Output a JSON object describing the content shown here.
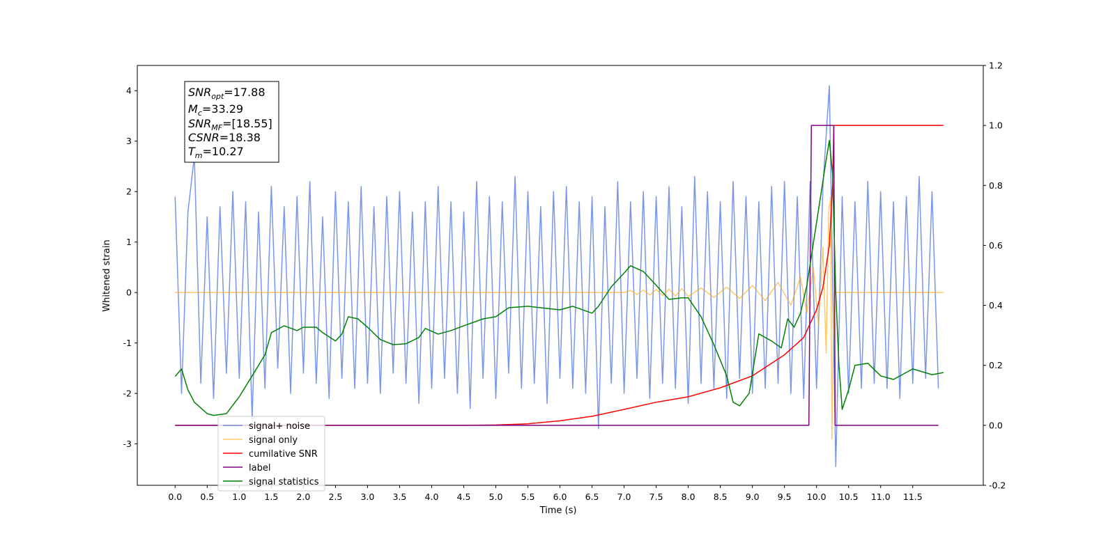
{
  "chart_data": {
    "type": "line",
    "xlabel": "Time (s)",
    "ylabel": "Whitened strain",
    "xlim": [
      -0.59,
      12.6
    ],
    "ylim": [
      -3.82,
      4.5
    ],
    "y2lim": [
      -0.2,
      1.2
    ],
    "xticks": [
      {
        "value": 0,
        "label": "0.0"
      },
      0.5,
      {
        "value": 1,
        "label": "1.0"
      },
      1.5,
      {
        "value": 2,
        "label": "2.0"
      },
      2.5,
      {
        "value": 3,
        "label": "3.0"
      },
      3.5,
      {
        "value": 4,
        "label": "4.0"
      },
      4.5,
      {
        "value": 5,
        "label": "5.0"
      },
      5.5,
      {
        "value": 6,
        "label": "6.0"
      },
      6.5,
      {
        "value": 7,
        "label": "7.0"
      },
      7.5,
      {
        "value": 8,
        "label": "8.0"
      },
      8.5,
      {
        "value": 9,
        "label": "9.0"
      },
      9.5,
      {
        "value": 10,
        "label": "10.0"
      },
      10.5,
      {
        "value": 11,
        "label": "11.0"
      },
      11.5
    ],
    "yticks": [
      -3,
      -2,
      -1,
      0,
      1,
      2,
      3,
      4
    ],
    "y2ticks": [
      -0.2,
      {
        "value": 0,
        "label": "0.0"
      },
      0.2,
      0.4,
      0.6,
      0.8,
      {
        "value": 1,
        "label": "1.0"
      },
      1.2
    ],
    "annotations": [
      {
        "base": "SNR",
        "sub": "opt",
        "text": "=17.88"
      },
      {
        "base": "M",
        "sub": "c",
        "text": "=33.29"
      },
      {
        "base": "SNR",
        "sub": "MF",
        "text": "=[18.55]"
      },
      {
        "base": "CSNR",
        "text": "=18.38"
      },
      {
        "base": "T",
        "sub": "m",
        "text": "=10.27"
      }
    ],
    "series": [
      {
        "name": "signal+ noise",
        "color": "#4169e1",
        "alpha": 0.7,
        "axis": "y",
        "x": [
          0,
          0.1,
          0.2,
          0.3,
          0.4,
          0.5,
          0.6,
          0.7,
          0.8,
          0.9,
          1,
          1.1,
          1.2,
          1.3,
          1.4,
          1.5,
          1.6,
          1.7,
          1.8,
          1.9,
          2,
          2.1,
          2.2,
          2.3,
          2.4,
          2.5,
          2.6,
          2.7,
          2.8,
          2.9,
          3,
          3.1,
          3.2,
          3.3,
          3.4,
          3.5,
          3.6,
          3.7,
          3.8,
          3.9,
          4,
          4.1,
          4.2,
          4.3,
          4.4,
          4.5,
          4.6,
          4.7,
          4.8,
          4.9,
          5,
          5.1,
          5.2,
          5.3,
          5.4,
          5.5,
          5.6,
          5.7,
          5.8,
          5.9,
          6,
          6.1,
          6.2,
          6.3,
          6.4,
          6.5,
          6.6,
          6.7,
          6.8,
          6.9,
          7,
          7.1,
          7.2,
          7.3,
          7.4,
          7.5,
          7.6,
          7.7,
          7.8,
          7.9,
          8,
          8.1,
          8.2,
          8.3,
          8.4,
          8.5,
          8.6,
          8.7,
          8.8,
          8.9,
          9,
          9.1,
          9.2,
          9.3,
          9.4,
          9.5,
          9.6,
          9.7,
          9.8,
          9.9,
          10,
          10.1,
          10.2,
          10.3,
          10.4,
          10.5,
          10.6,
          10.7,
          10.8,
          10.9,
          11,
          11.1,
          11.2,
          11.3,
          11.4,
          11.5,
          11.6,
          11.7,
          11.8,
          11.9
        ],
        "values": [
          1.9,
          -2.0,
          1.6,
          2.7,
          -1.8,
          1.5,
          -2.1,
          1.7,
          -1.6,
          2.0,
          -1.7,
          1.8,
          -2.5,
          1.6,
          -1.9,
          2.1,
          -1.5,
          1.7,
          -2.0,
          1.9,
          -1.6,
          2.2,
          -1.8,
          1.5,
          -2.1,
          2.0,
          -1.7,
          1.8,
          -1.9,
          2.1,
          -1.8,
          1.7,
          -2.0,
          1.9,
          -1.6,
          2.0,
          -1.8,
          1.6,
          -2.2,
          1.8,
          -1.9,
          2.1,
          -1.7,
          1.8,
          -2.0,
          1.6,
          -2.3,
          2.2,
          -1.7,
          1.9,
          -2.1,
          1.8,
          -1.6,
          2.3,
          -1.9,
          2.0,
          -1.8,
          1.7,
          -2.2,
          2.0,
          -1.7,
          2.1,
          -1.9,
          1.8,
          -2.0,
          1.9,
          -2.7,
          1.7,
          -1.8,
          2.2,
          -2.0,
          1.8,
          -1.7,
          2.0,
          -2.1,
          1.9,
          -1.8,
          2.1,
          -1.9,
          1.7,
          -2.2,
          2.3,
          -1.8,
          2.0,
          -1.9,
          1.8,
          -2.1,
          2.2,
          -1.7,
          1.9,
          -2.0,
          1.8,
          -1.9,
          2.1,
          -1.8,
          2.2,
          -2.0,
          1.9,
          -2.1,
          2.2,
          -1.9,
          2.1,
          4.1,
          -3.45,
          1.9,
          -2.0,
          1.8,
          -1.9,
          2.2,
          -1.8,
          2.0,
          -1.9,
          1.8,
          -2.1,
          1.9,
          -1.8,
          2.3,
          -1.7,
          2.0,
          -1.9
        ]
      },
      {
        "name": "signal only",
        "color": "#ffa500",
        "alpha": 0.6,
        "axis": "y",
        "x": [
          0,
          7.0,
          7.1,
          7.2,
          7.3,
          7.4,
          7.5,
          7.6,
          7.7,
          7.8,
          7.9,
          8.0,
          8.2,
          8.4,
          8.6,
          8.8,
          9.0,
          9.2,
          9.4,
          9.6,
          9.75,
          9.85,
          9.95,
          10.03,
          10.1,
          10.15,
          10.19,
          10.22,
          10.24,
          10.26,
          10.28,
          11.98
        ],
        "values": [
          0,
          0,
          0.04,
          -0.04,
          0.05,
          -0.05,
          0.06,
          -0.06,
          0.07,
          -0.07,
          0.08,
          -0.08,
          0.09,
          -0.1,
          0.11,
          -0.12,
          0.14,
          -0.16,
          0.2,
          -0.25,
          0.3,
          -0.4,
          0.5,
          -0.65,
          0.9,
          -1.2,
          1.6,
          1.9,
          -2.9,
          -1.0,
          0,
          0
        ]
      },
      {
        "name": "cumilative SNR",
        "color": "#ff0000",
        "alpha": 1,
        "axis": "y2",
        "x": [
          0,
          4.5,
          5.0,
          5.5,
          6.0,
          6.5,
          7.0,
          7.5,
          8.0,
          8.5,
          9.0,
          9.5,
          9.8,
          10.0,
          10.1,
          10.2,
          10.25,
          10.27,
          11.98
        ],
        "values": [
          0,
          0,
          0.001,
          0.005,
          0.015,
          0.03,
          0.053,
          0.077,
          0.095,
          0.125,
          0.165,
          0.235,
          0.293,
          0.385,
          0.46,
          0.6,
          0.8,
          1.0,
          1.0
        ]
      },
      {
        "name": "label",
        "color": "#800080",
        "alpha": 1,
        "axis": "y2",
        "x": [
          0,
          9.88,
          9.92,
          10.27,
          10.29,
          11.9
        ],
        "values": [
          0,
          0,
          1,
          1,
          0,
          0
        ]
      },
      {
        "name": "signal statistics",
        "color": "#008000",
        "alpha": 1,
        "axis": "y2",
        "x": [
          0,
          0.1,
          0.2,
          0.3,
          0.5,
          0.6,
          0.8,
          1.0,
          1.2,
          1.4,
          1.5,
          1.7,
          1.9,
          2.0,
          2.2,
          2.3,
          2.5,
          2.6,
          2.7,
          2.85,
          3.0,
          3.2,
          3.4,
          3.6,
          3.8,
          3.9,
          4.1,
          4.3,
          4.5,
          4.8,
          5.0,
          5.2,
          5.5,
          5.7,
          6.0,
          6.2,
          6.5,
          6.6,
          6.8,
          7.0,
          7.1,
          7.3,
          7.5,
          7.7,
          7.9,
          8.0,
          8.2,
          8.4,
          8.6,
          8.7,
          8.8,
          8.95,
          9.1,
          9.3,
          9.45,
          9.55,
          9.65,
          9.75,
          9.85,
          9.95,
          10.05,
          10.15,
          10.2,
          10.25,
          10.3,
          10.35,
          10.4,
          10.5,
          10.6,
          10.8,
          11.0,
          11.2,
          11.5,
          11.8,
          11.98
        ],
        "values": [
          0.163,
          0.188,
          0.118,
          0.077,
          0.039,
          0.033,
          0.039,
          0.095,
          0.165,
          0.235,
          0.309,
          0.332,
          0.316,
          0.327,
          0.327,
          0.309,
          0.281,
          0.304,
          0.362,
          0.355,
          0.327,
          0.286,
          0.269,
          0.272,
          0.293,
          0.323,
          0.304,
          0.316,
          0.332,
          0.355,
          0.362,
          0.392,
          0.397,
          0.392,
          0.385,
          0.397,
          0.374,
          0.397,
          0.462,
          0.508,
          0.532,
          0.513,
          0.467,
          0.42,
          0.425,
          0.425,
          0.362,
          0.269,
          0.165,
          0.077,
          0.065,
          0.107,
          0.305,
          0.281,
          0.258,
          0.355,
          0.327,
          0.374,
          0.467,
          0.606,
          0.745,
          0.885,
          0.95,
          0.838,
          0.443,
          0.2,
          0.053,
          0.118,
          0.2,
          0.207,
          0.165,
          0.153,
          0.188,
          0.169,
          0.176
        ]
      }
    ]
  }
}
